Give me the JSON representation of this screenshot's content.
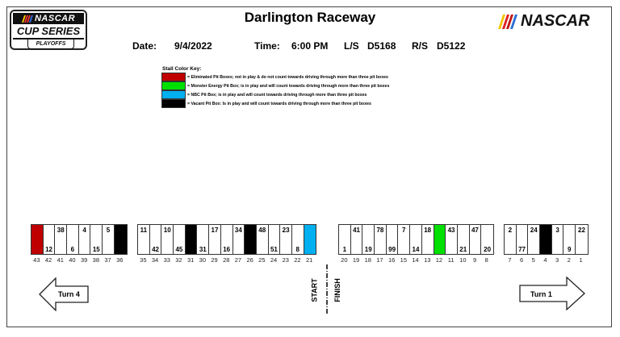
{
  "header": {
    "title": "Darlington Raceway",
    "logo_left": {
      "brand": "NASCAR",
      "series": "CUP SERIES",
      "sub": "PLAYOFFS"
    },
    "logo_right": {
      "brand": "NASCAR"
    }
  },
  "info": {
    "date_label": "Date:",
    "date_value": "9/4/2022",
    "time_label": "Time:",
    "time_value": "6:00 PM",
    "ls_label": "L/S",
    "ls_value": "D5168",
    "rs_label": "R/S",
    "rs_value": "D5122"
  },
  "key": {
    "title": "Stall Color Key:",
    "items": [
      {
        "color": "#c00000",
        "text": "= Eliminated Pit Boxes; not in play & do not count towards driving through more than three pit boxes"
      },
      {
        "color": "#00e000",
        "text": "= Monster Energy Pit Box; is in play and will count towards driving through more than three pit boxes"
      },
      {
        "color": "#00b0f0",
        "text": "= NBC Pit Box; is in play and will count towards driving through more than three pit boxes"
      },
      {
        "color": "#000000",
        "text": "= Vacant Pit Box:  Is in play and will count towards driving through more than three pit boxes"
      }
    ]
  },
  "pit_road": {
    "groups": [
      {
        "stalls": [
          {
            "num": "43",
            "car": "",
            "pos": "",
            "color": "#c00000"
          },
          {
            "num": "42",
            "car": "12",
            "pos": "bottom",
            "color": "#ffffff"
          },
          {
            "num": "41",
            "car": "38",
            "pos": "top",
            "color": "#ffffff"
          },
          {
            "num": "40",
            "car": "6",
            "pos": "bottom",
            "color": "#ffffff"
          },
          {
            "num": "39",
            "car": "4",
            "pos": "top",
            "color": "#ffffff"
          },
          {
            "num": "38",
            "car": "15",
            "pos": "bottom",
            "color": "#ffffff"
          },
          {
            "num": "37",
            "car": "5",
            "pos": "top",
            "color": "#ffffff"
          },
          {
            "num": "36",
            "car": "",
            "pos": "",
            "color": "#000000"
          }
        ]
      },
      {
        "stalls": [
          {
            "num": "35",
            "car": "11",
            "pos": "top",
            "color": "#ffffff"
          },
          {
            "num": "34",
            "car": "42",
            "pos": "bottom",
            "color": "#ffffff"
          },
          {
            "num": "33",
            "car": "10",
            "pos": "top",
            "color": "#ffffff"
          },
          {
            "num": "32",
            "car": "45",
            "pos": "bottom",
            "color": "#ffffff"
          },
          {
            "num": "31",
            "car": "",
            "pos": "",
            "color": "#000000"
          },
          {
            "num": "30",
            "car": "31",
            "pos": "bottom",
            "color": "#ffffff"
          },
          {
            "num": "29",
            "car": "17",
            "pos": "top",
            "color": "#ffffff"
          },
          {
            "num": "28",
            "car": "16",
            "pos": "bottom",
            "color": "#ffffff"
          },
          {
            "num": "27",
            "car": "34",
            "pos": "top",
            "color": "#ffffff"
          },
          {
            "num": "26",
            "car": "",
            "pos": "",
            "color": "#000000"
          },
          {
            "num": "25",
            "car": "48",
            "pos": "top",
            "color": "#ffffff"
          },
          {
            "num": "24",
            "car": "51",
            "pos": "bottom",
            "color": "#ffffff"
          },
          {
            "num": "23",
            "car": "23",
            "pos": "top",
            "color": "#ffffff"
          },
          {
            "num": "22",
            "car": "8",
            "pos": "bottom",
            "color": "#ffffff"
          },
          {
            "num": "21",
            "car": "",
            "pos": "",
            "color": "#00b0f0"
          }
        ]
      },
      {
        "stalls": [
          {
            "num": "20",
            "car": "1",
            "pos": "bottom",
            "color": "#ffffff"
          },
          {
            "num": "19",
            "car": "41",
            "pos": "top",
            "color": "#ffffff"
          },
          {
            "num": "18",
            "car": "19",
            "pos": "bottom",
            "color": "#ffffff"
          },
          {
            "num": "17",
            "car": "78",
            "pos": "top",
            "color": "#ffffff"
          },
          {
            "num": "16",
            "car": "99",
            "pos": "bottom",
            "color": "#ffffff"
          },
          {
            "num": "15",
            "car": "7",
            "pos": "top",
            "color": "#ffffff"
          },
          {
            "num": "14",
            "car": "14",
            "pos": "bottom",
            "color": "#ffffff"
          },
          {
            "num": "13",
            "car": "18",
            "pos": "top",
            "color": "#ffffff"
          },
          {
            "num": "12",
            "car": "",
            "pos": "",
            "color": "#00e000"
          },
          {
            "num": "11",
            "car": "43",
            "pos": "top",
            "color": "#ffffff"
          },
          {
            "num": "10",
            "car": "21",
            "pos": "bottom",
            "color": "#ffffff"
          },
          {
            "num": "9",
            "car": "47",
            "pos": "top",
            "color": "#ffffff"
          },
          {
            "num": "8",
            "car": "20",
            "pos": "bottom",
            "color": "#ffffff"
          }
        ]
      },
      {
        "stalls": [
          {
            "num": "7",
            "car": "2",
            "pos": "top",
            "color": "#ffffff"
          },
          {
            "num": "6",
            "car": "77",
            "pos": "bottom",
            "color": "#ffffff"
          },
          {
            "num": "5",
            "car": "24",
            "pos": "top",
            "color": "#ffffff"
          },
          {
            "num": "4",
            "car": "",
            "pos": "",
            "color": "#000000"
          },
          {
            "num": "3",
            "car": "3",
            "pos": "top",
            "color": "#ffffff"
          },
          {
            "num": "2",
            "car": "9",
            "pos": "bottom",
            "color": "#ffffff"
          },
          {
            "num": "1",
            "car": "22",
            "pos": "top",
            "color": "#ffffff"
          }
        ]
      }
    ],
    "turn_left": "Turn 4",
    "turn_right": "Turn 1",
    "start": "START",
    "finish": "FINISH"
  }
}
